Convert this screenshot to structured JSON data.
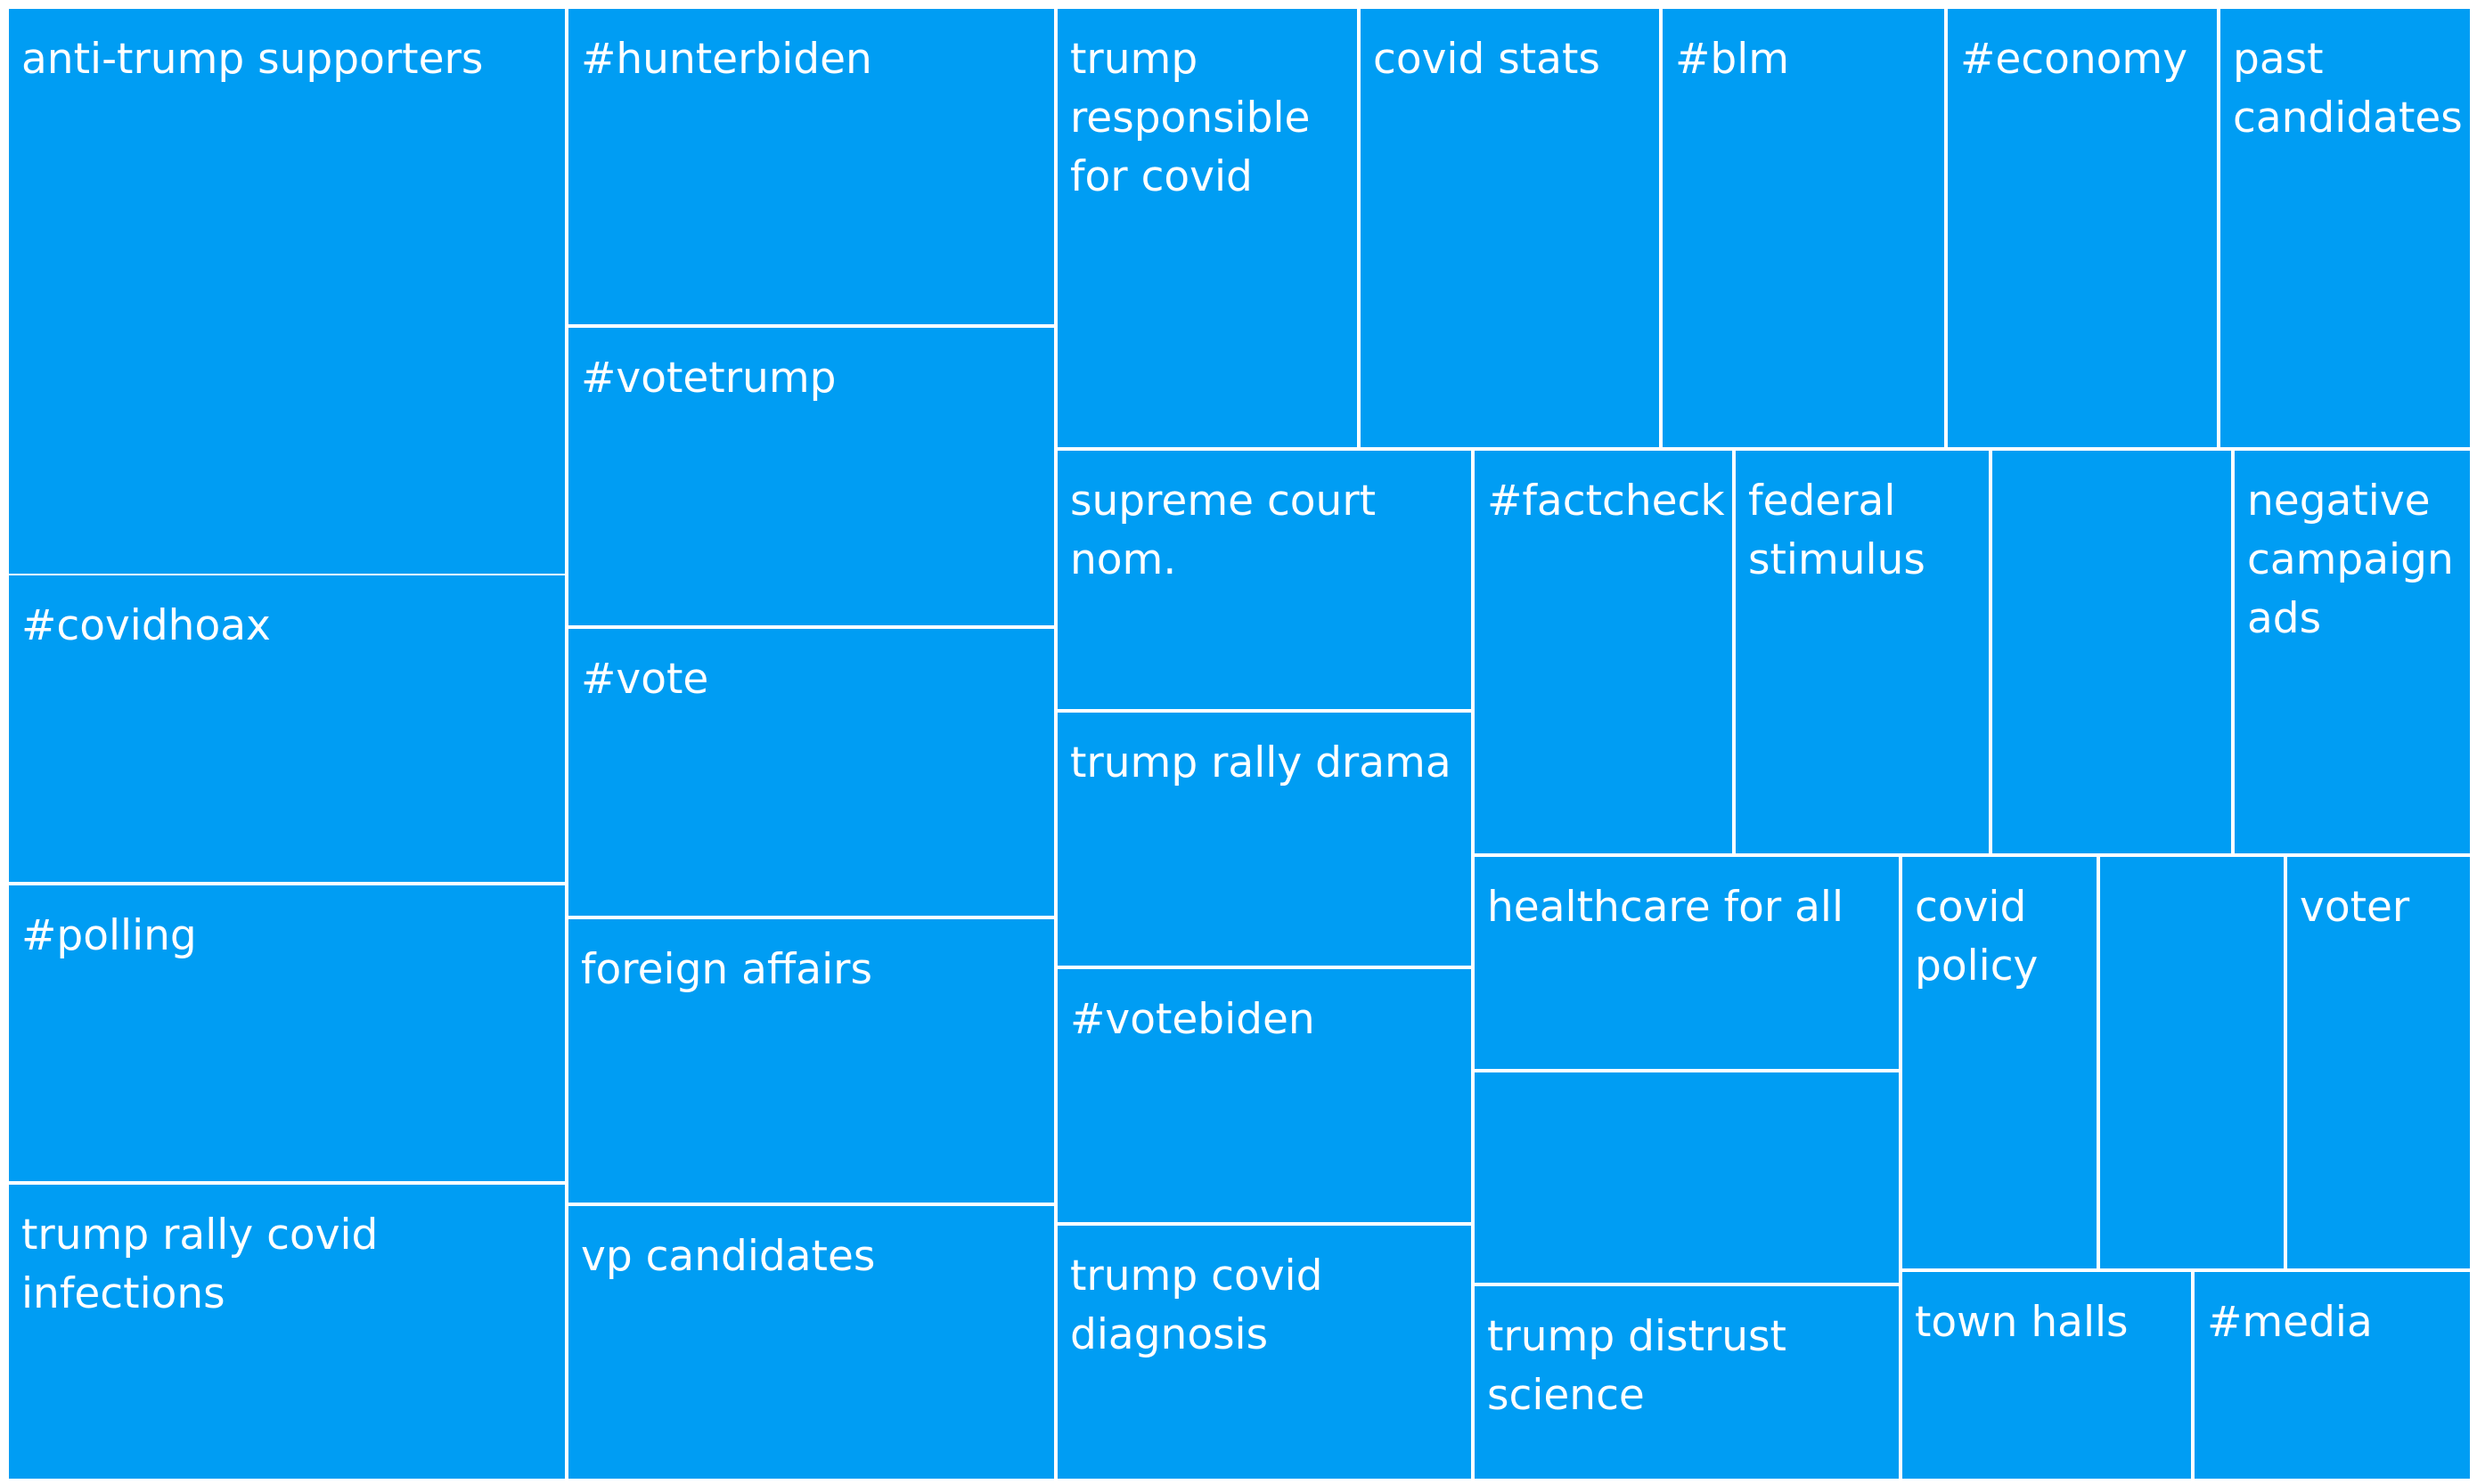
{
  "chart_data": {
    "type": "treemap",
    "title": "",
    "color": "#009DF3",
    "border_color": "#FFFFFF",
    "labels": [
      "anti-trump supporters",
      "#covidhoax",
      "#polling",
      "trump rally covid infections",
      "#hunterbiden",
      "#votetrump",
      "#vote",
      "foreign affairs",
      "vp candidates",
      "trump responsible for covid",
      "covid stats",
      "#blm",
      "#economy",
      "past candidates",
      "supreme court nom.",
      "trump rally drama",
      "#votebiden",
      "trump covid diagnosis",
      "#factcheck",
      "federal stimulus",
      "",
      "negative campaign ads",
      "healthcare for all",
      "",
      "trump distrust science",
      "covid policy",
      "",
      "voter",
      "town halls",
      "#media"
    ]
  }
}
